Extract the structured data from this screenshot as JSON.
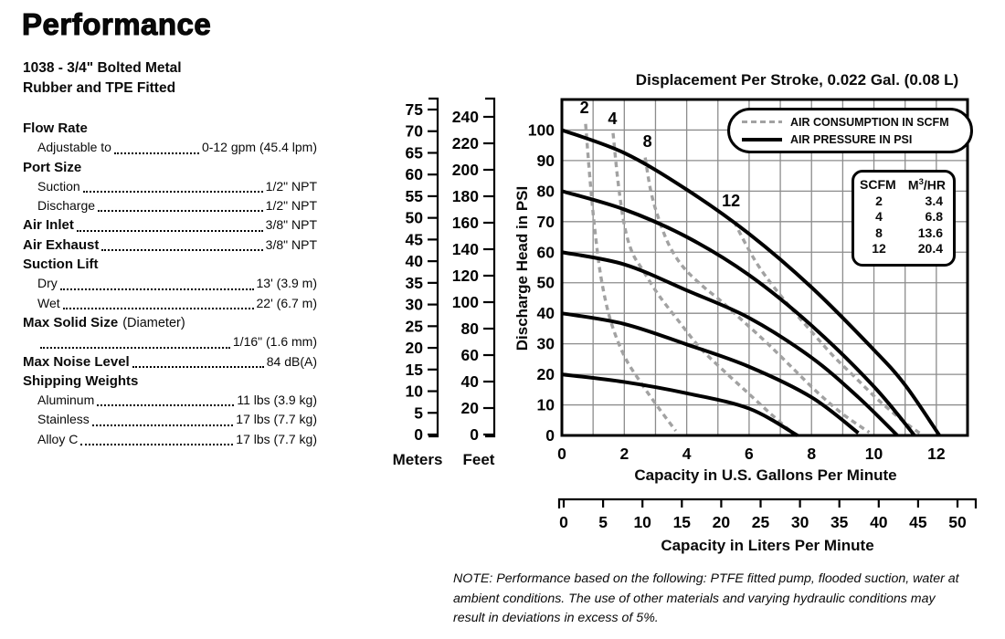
{
  "page": {
    "title": "Performance",
    "model_line1": "1038 - 3/4\" Bolted Metal",
    "model_line2": "Rubber and TPE Fitted"
  },
  "specs": {
    "flow_rate": {
      "label": "Flow Rate"
    },
    "adjustable": {
      "label": "Adjustable to",
      "value": "0-12 gpm (45.4 lpm)"
    },
    "port_size": {
      "label": "Port Size"
    },
    "suction": {
      "label": "Suction",
      "value": "1/2\" NPT"
    },
    "discharge": {
      "label": "Discharge",
      "value": "1/2\" NPT"
    },
    "air_inlet": {
      "label": "Air Inlet",
      "value": "3/8\" NPT"
    },
    "air_exhaust": {
      "label": "Air Exhaust",
      "value": "3/8\" NPT"
    },
    "suction_lift": {
      "label": "Suction Lift"
    },
    "dry": {
      "label": "Dry",
      "value": "13' (3.9 m)"
    },
    "wet": {
      "label": "Wet",
      "value": "22' (6.7 m)"
    },
    "max_solid": {
      "label": "Max Solid Size",
      "suffix": "(Diameter)"
    },
    "max_solid_value": {
      "value": "1/16\" (1.6 mm)"
    },
    "max_noise": {
      "label": "Max Noise Level",
      "value": "84 dB(A)"
    },
    "shipping": {
      "label": "Shipping Weights"
    },
    "aluminum": {
      "label": "Aluminum",
      "value": "11 lbs (3.9 kg)"
    },
    "stainless": {
      "label": "Stainless",
      "value": "17 lbs (7.7 kg)"
    },
    "alloy_c": {
      "label": "Alloy C",
      "value": "17 lbs (7.7 kg)"
    }
  },
  "note": "NOTE: Performance based on the following: PTFE fitted pump, flooded suction, water at ambient conditions. The use of other materials and varying hydraulic conditions may result in deviations in excess of 5%.",
  "chart_data": {
    "type": "line",
    "title": "Displacement Per Stroke, 0.022 Gal. (0.08 L)",
    "ylabel": "Discharge Head in PSI",
    "xlabel": "Capacity in U.S. Gallons Per Minute",
    "x2label": "Capacity in Liters Per Minute",
    "x_range_gallons": [
      0,
      13
    ],
    "y_range_psi": [
      0,
      110
    ],
    "grid": true,
    "x_grid_step_gallons": 1,
    "y_grid_step_psi": 10,
    "x_ticks_gallons": [
      0,
      2,
      4,
      6,
      8,
      10,
      12
    ],
    "y_ticks_psi": [
      0,
      10,
      20,
      30,
      40,
      50,
      60,
      70,
      80,
      90,
      100
    ],
    "x_ticks_liters": [
      0,
      5,
      10,
      15,
      20,
      25,
      30,
      35,
      40,
      45,
      50
    ],
    "meters_scale": {
      "label": "Meters",
      "ticks": [
        0,
        5,
        10,
        15,
        20,
        25,
        30,
        35,
        40,
        45,
        50,
        55,
        60,
        65,
        70,
        75
      ]
    },
    "feet_scale": {
      "label": "Feet",
      "ticks": [
        0,
        20,
        40,
        60,
        80,
        100,
        120,
        140,
        160,
        180,
        200,
        220,
        240
      ]
    },
    "legend": [
      {
        "label": "AIR CONSUMPTION IN SCFM",
        "style": "dotted"
      },
      {
        "label": "AIR PRESSURE IN PSI",
        "style": "solid"
      }
    ],
    "legend_position": "top-right-inside",
    "scfm_table": {
      "header_scfm": "SCFM",
      "header_m": "M",
      "header_sup": "3",
      "header_rest": "/HR",
      "rows": [
        [
          "2",
          "3.4"
        ],
        [
          "4",
          "6.8"
        ],
        [
          "8",
          "13.6"
        ],
        [
          "12",
          "20.4"
        ]
      ]
    },
    "curve_labels": [
      {
        "text": "2",
        "g": 0.72,
        "psi": 105.5
      },
      {
        "text": "4",
        "g": 1.62,
        "psi": 102.0
      },
      {
        "text": "8",
        "g": 2.74,
        "psi": 94.5
      },
      {
        "text": "12",
        "g": 5.42,
        "psi": 75.0
      }
    ],
    "colors": {
      "curve_solid": "#000000",
      "curve_dotted": "#a2a2a2",
      "grid": "#8c8c8c",
      "frame": "#000000"
    },
    "series": [
      {
        "name": "air-consumption-2-scfm",
        "group": "AIR CONSUMPTION IN SCFM",
        "scfm": 2,
        "style": "dotted",
        "points": [
          [
            0.76,
            102
          ],
          [
            0.9,
            84
          ],
          [
            1.05,
            68
          ],
          [
            1.25,
            52
          ],
          [
            1.55,
            38
          ],
          [
            2.0,
            26
          ],
          [
            2.55,
            17
          ],
          [
            3.1,
            9
          ],
          [
            3.65,
            1.5
          ]
        ]
      },
      {
        "name": "air-consumption-4-scfm",
        "group": "AIR CONSUMPTION IN SCFM",
        "scfm": 4,
        "style": "dotted",
        "points": [
          [
            1.64,
            99
          ],
          [
            1.8,
            83
          ],
          [
            2.0,
            69
          ],
          [
            2.25,
            60
          ],
          [
            2.6,
            54
          ],
          [
            3.1,
            46
          ],
          [
            3.7,
            38
          ],
          [
            4.4,
            29
          ],
          [
            5.1,
            22
          ],
          [
            5.9,
            14.5
          ],
          [
            6.7,
            7
          ],
          [
            7.4,
            0.8
          ]
        ]
      },
      {
        "name": "air-consumption-8-scfm",
        "group": "AIR CONSUMPTION IN SCFM",
        "scfm": 8,
        "style": "dotted",
        "points": [
          [
            2.67,
            91
          ],
          [
            2.85,
            80
          ],
          [
            3.1,
            71
          ],
          [
            3.45,
            62
          ],
          [
            3.9,
            55
          ],
          [
            4.5,
            49
          ],
          [
            5.1,
            44
          ],
          [
            5.8,
            37.5
          ],
          [
            6.6,
            30
          ],
          [
            7.4,
            22
          ],
          [
            8.2,
            14
          ],
          [
            9.0,
            7
          ],
          [
            9.85,
            1
          ]
        ]
      },
      {
        "name": "air-consumption-12-scfm",
        "group": "AIR CONSUMPTION IN SCFM",
        "scfm": 12,
        "style": "dotted",
        "points": [
          [
            5.52,
            70
          ],
          [
            5.9,
            62.5
          ],
          [
            6.3,
            55.5
          ],
          [
            6.8,
            48.5
          ],
          [
            7.4,
            41
          ],
          [
            8.0,
            34
          ],
          [
            8.7,
            26
          ],
          [
            9.4,
            19
          ],
          [
            10.1,
            12
          ],
          [
            10.9,
            5
          ],
          [
            11.5,
            0.5
          ]
        ]
      },
      {
        "name": "air-pressure-100-psi",
        "group": "AIR PRESSURE IN PSI",
        "psi": 100,
        "style": "solid",
        "points": [
          [
            0,
            100
          ],
          [
            2,
            92.5
          ],
          [
            4,
            80.5
          ],
          [
            6,
            66
          ],
          [
            8,
            48.5
          ],
          [
            10,
            28
          ],
          [
            11,
            16.5
          ],
          [
            12.1,
            0
          ]
        ]
      },
      {
        "name": "air-pressure-80-psi",
        "group": "AIR PRESSURE IN PSI",
        "psi": 80,
        "style": "solid",
        "points": [
          [
            0,
            80
          ],
          [
            2,
            74
          ],
          [
            4,
            65
          ],
          [
            6,
            52.5
          ],
          [
            8,
            36
          ],
          [
            10,
            16
          ],
          [
            11.3,
            0
          ]
        ]
      },
      {
        "name": "air-pressure-60-psi",
        "group": "AIR PRESSURE IN PSI",
        "psi": 60,
        "style": "solid",
        "points": [
          [
            0,
            60
          ],
          [
            2,
            56
          ],
          [
            4,
            47.5
          ],
          [
            6,
            38.5
          ],
          [
            8,
            25.5
          ],
          [
            9.5,
            12.5
          ],
          [
            10.75,
            0
          ]
        ]
      },
      {
        "name": "air-pressure-40-psi",
        "group": "AIR PRESSURE IN PSI",
        "psi": 40,
        "style": "solid",
        "points": [
          [
            0,
            40
          ],
          [
            2,
            36.5
          ],
          [
            4,
            29.8
          ],
          [
            6,
            22.5
          ],
          [
            8,
            12.5
          ],
          [
            9.5,
            0.8
          ]
        ]
      },
      {
        "name": "air-pressure-20-psi",
        "group": "AIR PRESSURE IN PSI",
        "psi": 20,
        "style": "solid",
        "points": [
          [
            0,
            20
          ],
          [
            2,
            17.5
          ],
          [
            4,
            13.8
          ],
          [
            6,
            8.8
          ],
          [
            7.55,
            0
          ]
        ]
      }
    ]
  }
}
